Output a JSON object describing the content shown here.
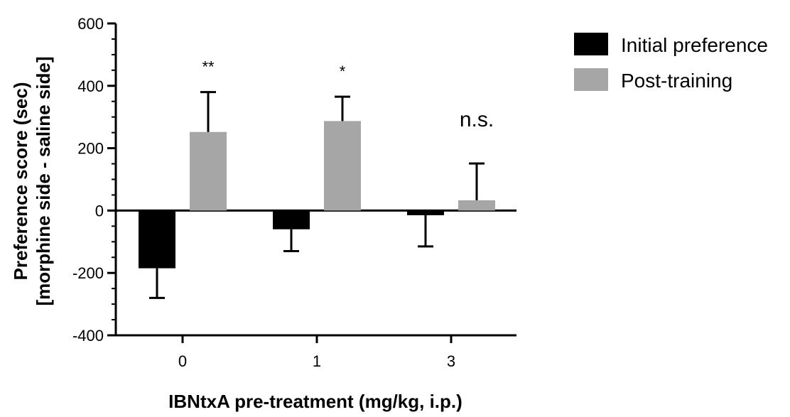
{
  "chart_data": {
    "type": "bar",
    "title": "",
    "xlabel": "IBNtxA pre-treatment (mg/kg, i.p.)",
    "ylabel": [
      "Preference score (sec)",
      "[morphine side - saline side]"
    ],
    "categories": [
      "0",
      "1",
      "3"
    ],
    "ylim": [
      -400,
      600
    ],
    "yticks": [
      -400,
      -200,
      0,
      200,
      400,
      600
    ],
    "grid": false,
    "legend_position": "top-right",
    "series": [
      {
        "name": "Initial preference",
        "color": "#000000",
        "values": [
          -185,
          -60,
          -15
        ],
        "errors": [
          95,
          70,
          100
        ]
      },
      {
        "name": "Post-training",
        "color": "#a6a6a7",
        "values": [
          252,
          287,
          33
        ],
        "errors": [
          128,
          78,
          118
        ]
      }
    ],
    "annotations": [
      "**",
      "*",
      "n.s."
    ]
  }
}
